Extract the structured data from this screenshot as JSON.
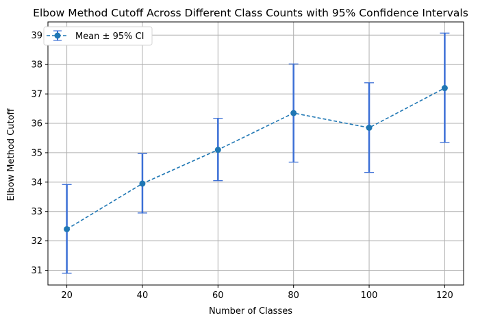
{
  "chart_data": {
    "type": "line",
    "title": "Elbow Method Cutoff Across Different Class Counts with 95% Confidence Intervals",
    "xlabel": "Number of Classes",
    "ylabel": "Elbow Method Cutoff",
    "xlim": [
      15,
      125
    ],
    "ylim": [
      30.5,
      39.45
    ],
    "x_ticks": [
      "20",
      "40",
      "60",
      "80",
      "100",
      "120"
    ],
    "y_ticks": [
      "31",
      "32",
      "33",
      "34",
      "35",
      "36",
      "37",
      "38",
      "39"
    ],
    "grid": true,
    "legend_position": "top-left",
    "series": [
      {
        "name": "Mean ± 95% CI",
        "x": [
          20,
          40,
          60,
          80,
          100,
          120
        ],
        "y": [
          32.4,
          33.95,
          35.1,
          36.35,
          35.85,
          37.2
        ],
        "ci_low": [
          30.9,
          32.95,
          34.05,
          34.68,
          34.33,
          35.35
        ],
        "ci_high": [
          33.92,
          34.97,
          36.17,
          38.02,
          37.38,
          39.07
        ],
        "line_color": "#1f77b4",
        "errorbar_color": "#3b6fd6"
      }
    ]
  }
}
